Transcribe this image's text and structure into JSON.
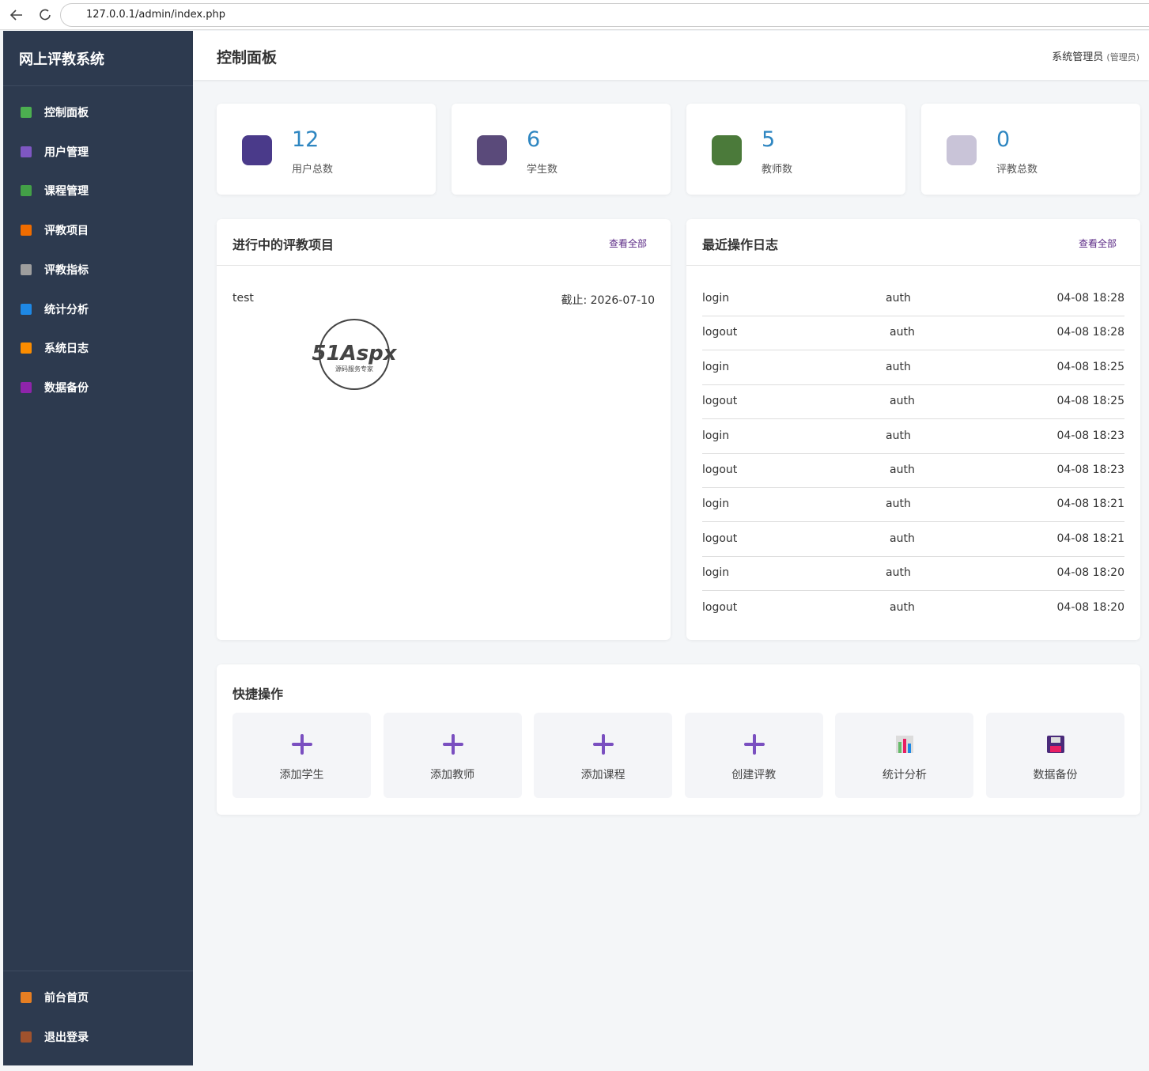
{
  "browser": {
    "url": "127.0.0.1/admin/index.php"
  },
  "sidebar": {
    "title": "网上评教系统",
    "menu": [
      "控制面板",
      "用户管理",
      "课程管理",
      "评教项目",
      "评教指标",
      "统计分析",
      "系统日志",
      "数据备份"
    ],
    "footer_menu": [
      "前台首页",
      "退出登录"
    ]
  },
  "header": {
    "title": "控制面板",
    "user": "系统管理员",
    "role": "(管理员)"
  },
  "stats": [
    {
      "value": 12,
      "label": "用户总数"
    },
    {
      "value": 6,
      "label": "学生数"
    },
    {
      "value": 5,
      "label": "教师数"
    },
    {
      "value": 0,
      "label": "评教总数"
    }
  ],
  "projects": {
    "title": "进行中的评教项目",
    "link": "查看全部",
    "items": [
      {
        "name": "test",
        "deadline": "截止: 2026-07-10"
      }
    ]
  },
  "watermark": {
    "brand": "51Aspx",
    "tagline": "源码服务专家"
  },
  "logs": {
    "title": "最近操作日志",
    "link": "查看全部",
    "rows": [
      [
        "login",
        "auth",
        "04-08 18:28"
      ],
      [
        "logout",
        "auth",
        "04-08 18:28"
      ],
      [
        "login",
        "auth",
        "04-08 18:25"
      ],
      [
        "logout",
        "auth",
        "04-08 18:25"
      ],
      [
        "login",
        "auth",
        "04-08 18:23"
      ],
      [
        "logout",
        "auth",
        "04-08 18:23"
      ],
      [
        "login",
        "auth",
        "04-08 18:21"
      ],
      [
        "logout",
        "auth",
        "04-08 18:21"
      ],
      [
        "login",
        "auth",
        "04-08 18:20"
      ],
      [
        "logout",
        "auth",
        "04-08 18:20"
      ]
    ]
  },
  "quick": {
    "title": "快捷操作",
    "actions": [
      "添加学生",
      "添加教师",
      "添加课程",
      "创建评教",
      "统计分析",
      "数据备份"
    ]
  }
}
